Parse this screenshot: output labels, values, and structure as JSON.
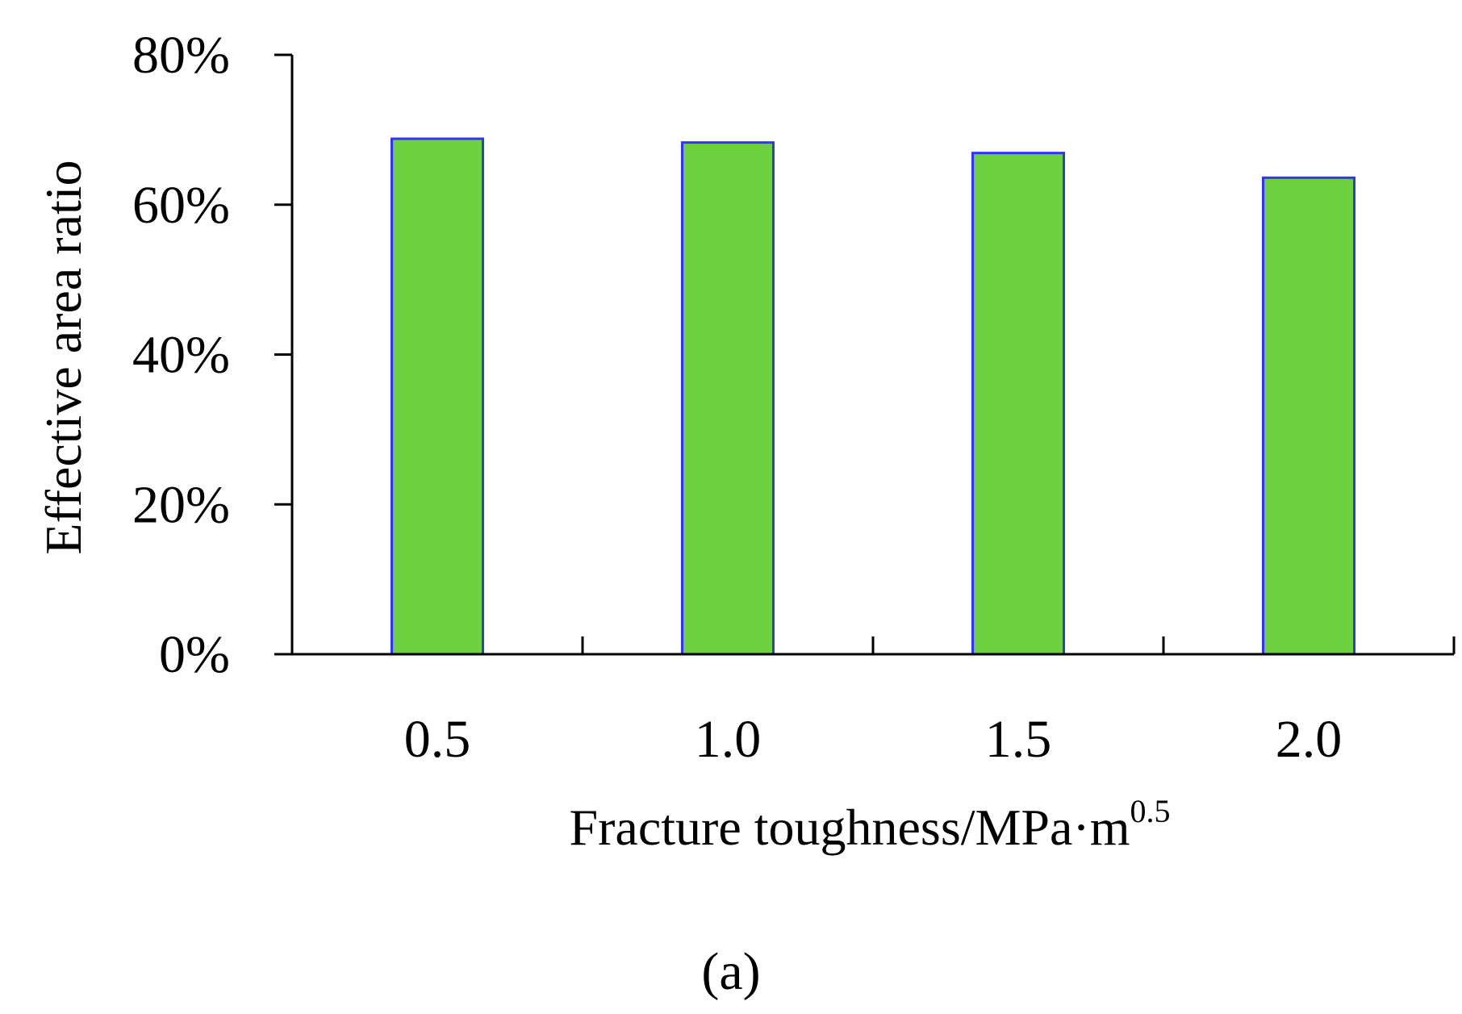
{
  "chart_data": {
    "type": "bar",
    "categories": [
      "0.5",
      "1.0",
      "1.5",
      "2.0"
    ],
    "values": [
      0.688,
      0.683,
      0.669,
      0.636
    ],
    "title": "",
    "xlabel": "Fracture toughness/MPa·m",
    "xlabel_superscript": "0.5",
    "ylabel": "Effective area ratio",
    "ylim": [
      0,
      0.8
    ],
    "yticks": [
      0,
      0.2,
      0.4,
      0.6,
      0.8
    ],
    "ytick_labels": [
      "0%",
      "20%",
      "40%",
      "60%",
      "80%"
    ],
    "grid": false,
    "legend": "none",
    "bar_color": "#6dd13f",
    "bar_edge_color": "#3333ff"
  },
  "panel_label": "(a)"
}
